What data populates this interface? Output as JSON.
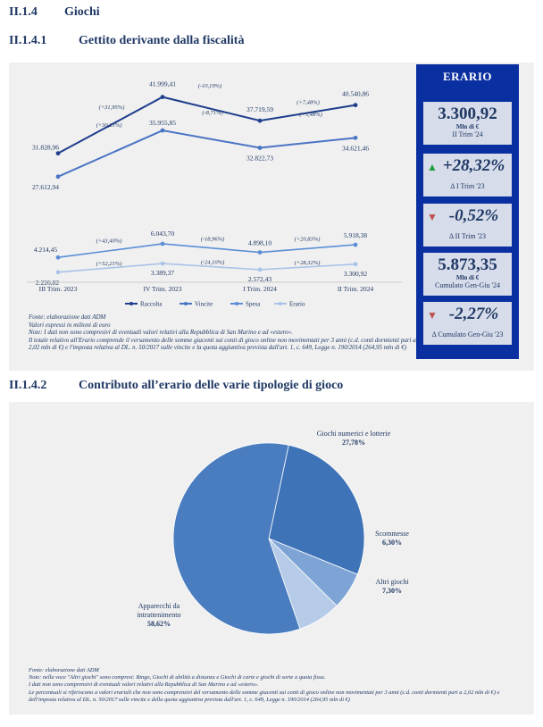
{
  "headings": {
    "section": {
      "num": "II.1.4",
      "title": "Giochi"
    },
    "sub1": {
      "num": "II.1.4.1",
      "title": "Gettito derivante dalla fiscalità"
    },
    "sub2": {
      "num": "II.1.4.2",
      "title": "Contributo all’erario delle varie tipologie di gioco"
    }
  },
  "colors": {
    "raccolta": "#1f3d8c",
    "vincite": "#4a74c4",
    "spesa": "#5b8ed6",
    "erario": "#a9c3e8",
    "up": "#1e9e3a",
    "down": "#c0504d",
    "sidebar": "#0a2fa0"
  },
  "chart_data": [
    {
      "type": "line",
      "categories": [
        "III Trim. 2023",
        "IV Trim. 2023",
        "I Trim. 2024",
        "II Trim. 2024"
      ],
      "series": [
        {
          "name": "Raccolta",
          "values": [
            31828.96,
            41999.41,
            37719.59,
            40540.86
          ],
          "labels": [
            "31.828,96",
            "41.999,41",
            "37.719,59",
            "40.540,86"
          ],
          "changes": [
            "(+31,95%)",
            "(-10,19%)",
            "(+7,48%)"
          ]
        },
        {
          "name": "Vincite",
          "values": [
            27612.94,
            35955.85,
            32822.73,
            34621.46
          ],
          "labels": [
            "27.612,94",
            "35.955,85",
            "32.822,73",
            "34.621,46"
          ],
          "changes": [
            "(+30,21%)",
            "(-8,71%)",
            "(+5,48%)"
          ]
        },
        {
          "name": "Spesa",
          "values": [
            4214.45,
            6043.7,
            4898.1,
            5918.38
          ],
          "labels": [
            "4.214,45",
            "6.043,70",
            "4.898,10",
            "5.918,38"
          ],
          "changes": [
            "(+43,40%)",
            "(-18,96%)",
            "(+20,83%)"
          ]
        },
        {
          "name": "Erario",
          "values": [
            2226.82,
            3389.37,
            2572.43,
            3300.92
          ],
          "labels": [
            "2.226,82",
            "3.389,37",
            "2.572,43",
            "3.300,92"
          ],
          "changes": [
            "(+52,21%)",
            "(-24,10%)",
            "(+28,32%)"
          ]
        }
      ]
    },
    {
      "type": "pie",
      "slices": [
        {
          "label": "Giochi numerici e lotterie",
          "value": 27.78,
          "pct": "27,78%"
        },
        {
          "label": "Scommesse",
          "value": 6.3,
          "pct": "6,30%"
        },
        {
          "label": "Altri giochi",
          "value": 7.3,
          "pct": "7,30%"
        },
        {
          "label": "Apparecchi da intrattenimento",
          "value": 58.62,
          "pct": "58,62%"
        }
      ]
    }
  ],
  "sidebar": {
    "title": "ERARIO",
    "box1": {
      "value": "3.300,92",
      "unit": "Mln di €",
      "caption": "II Trim '24"
    },
    "box2": {
      "value": "+28,32%",
      "caption": "Δ I Trim '23",
      "arrow": "▲"
    },
    "box3": {
      "value": "-0,52%",
      "caption": "Δ II Trim '23",
      "arrow": "▼"
    },
    "box4": {
      "value": "5.873,35",
      "unit": "Mln di €",
      "caption": "Cumulato Gen-Giu '24"
    },
    "box5": {
      "value": "-2,27%",
      "caption": "Δ Cumulato Gen-Giu '23",
      "arrow": "▼"
    }
  },
  "notes1": [
    "Fonte: elaborazione dati ADM",
    "Valori espressi in milioni di euro",
    "Note: I dati non sono compresivi di eventuali valori relativi alla Repubblica di San Marino e ad «estero».",
    "Il totale relativo all'Erario comprende il versamento delle somme giacenti sui conti di gioco online non movimentati per 3 anni (c.d. conti dormienti pari a 2,02 mln di €) e l'imposta relativa al DL. n. 50/2017 sulle vincite e la quota aggiuntiva prevista dall'art. 1, c. 649, Legge n. 190/2014 (264,95 mln di €)"
  ],
  "notes2": [
    "Fonte: elaborazione dati ADM",
    "Note: nella voce \"Altri giochi\" sono compresi: Bingo, Giochi di abilità a distanza e Giochi di carte e giochi di sorte a quota fissa.",
    " I dati non sono comprensivi di eventuali valori relativi alla Repubblica di San Marino e ad «estero».",
    "Le percentuali si riferiscono a valori erariali che non sono comprensivi del versamento delle somme giacenti sui conti di gioco online non movimentati per 3 anni (c.d. conti dormienti pari a 2,02 mln di €) e dell'imposta relativa al DL. n. 50/2017 sulle vincite e della quota aggiuntiva prevista dall'art. 1, c. 649, Legge n. 190/2014 (264,95 mln di €)"
  ]
}
